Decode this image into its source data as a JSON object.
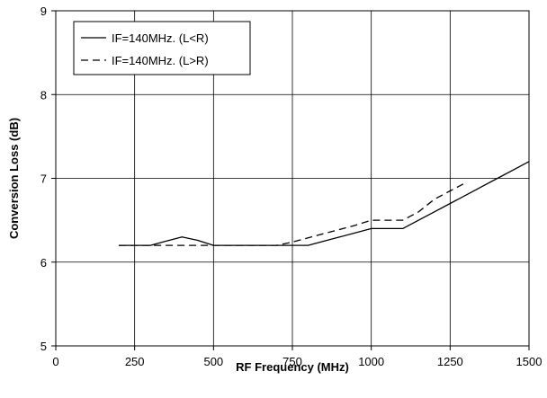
{
  "chart_data": {
    "type": "line",
    "title": "",
    "xlabel": "RF Frequency (MHz)",
    "ylabel": "Conversion Loss (dB)",
    "xlim": [
      0,
      1500
    ],
    "ylim": [
      5,
      9
    ],
    "x_ticks": [
      0,
      250,
      500,
      750,
      1000,
      1250,
      1500
    ],
    "y_ticks": [
      5,
      6,
      7,
      8,
      9
    ],
    "grid": true,
    "legend_position": "top-left",
    "series": [
      {
        "name": "IF=140MHz. (L<R)",
        "style": "solid",
        "color": "#000000",
        "x": [
          200,
          250,
          300,
          350,
          400,
          450,
          500,
          550,
          600,
          650,
          700,
          750,
          800,
          850,
          900,
          950,
          1000,
          1050,
          1100,
          1150,
          1200,
          1250,
          1300,
          1350,
          1400,
          1450,
          1500
        ],
        "y": [
          6.2,
          6.2,
          6.2,
          6.25,
          6.3,
          6.26,
          6.2,
          6.2,
          6.2,
          6.2,
          6.2,
          6.2,
          6.2,
          6.25,
          6.3,
          6.35,
          6.4,
          6.4,
          6.4,
          6.5,
          6.6,
          6.7,
          6.8,
          6.9,
          7.0,
          7.1,
          7.2
        ]
      },
      {
        "name": "IF=140MHz. (L>R)",
        "style": "dashed",
        "color": "#000000",
        "x": [
          200,
          250,
          300,
          350,
          400,
          450,
          500,
          550,
          600,
          650,
          700,
          750,
          800,
          850,
          900,
          950,
          1000,
          1050,
          1100,
          1150,
          1200,
          1250,
          1300
        ],
        "y": [
          6.2,
          6.2,
          6.2,
          6.2,
          6.2,
          6.2,
          6.2,
          6.2,
          6.2,
          6.2,
          6.2,
          6.24,
          6.29,
          6.34,
          6.39,
          6.44,
          6.5,
          6.5,
          6.5,
          6.6,
          6.75,
          6.85,
          6.95
        ]
      }
    ]
  }
}
